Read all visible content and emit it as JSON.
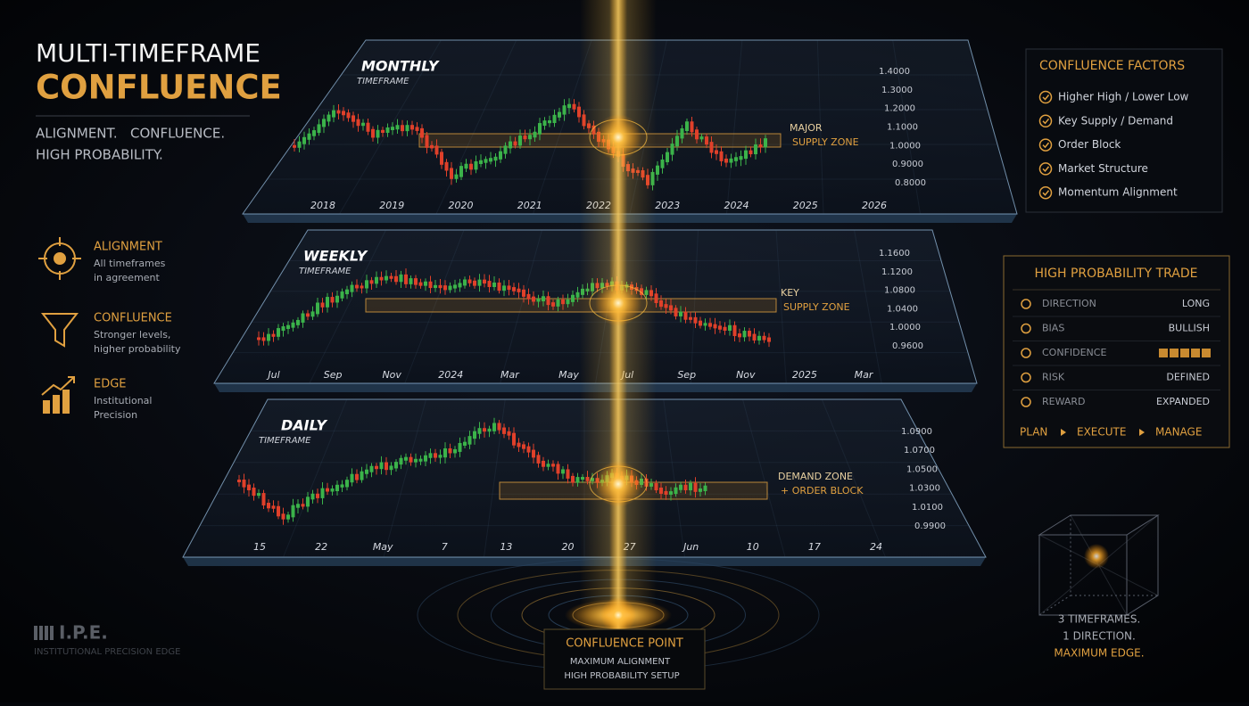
{
  "header": {
    "title_line1": "MULTI-TIMEFRAME",
    "title_line2": "CONFLUENCE",
    "tagline": [
      "ALIGNMENT.   CONFLUENCE.",
      "HIGH PROBABILITY."
    ]
  },
  "features": [
    {
      "title": "ALIGNMENT",
      "desc": [
        "All timeframes",
        "in agreement"
      ]
    },
    {
      "title": "CONFLUENCE",
      "desc": [
        "Stronger levels,",
        "higher probability"
      ]
    },
    {
      "title": "EDGE",
      "desc": [
        "Institutional",
        "Precision"
      ]
    }
  ],
  "panels": [
    {
      "title": "MONTHLY",
      "subtitle": "TIMEFRAME",
      "x_labels": [
        "2018",
        "2019",
        "2020",
        "2021",
        "2022",
        "2023",
        "2024",
        "2025",
        "2026"
      ],
      "y_labels": [
        "1.4000",
        "1.3000",
        "1.2000",
        "1.1000",
        "1.0000",
        "0.9000",
        "0.8000"
      ],
      "zone": [
        "MAJOR",
        "SUPPLY ZONE"
      ]
    },
    {
      "title": "WEEKLY",
      "subtitle": "TIMEFRAME",
      "x_labels": [
        "Jul",
        "Sep",
        "Nov",
        "2024",
        "Mar",
        "May",
        "Jul",
        "Sep",
        "Nov",
        "2025",
        "Mar"
      ],
      "y_labels": [
        "1.1600",
        "1.1200",
        "1.0800",
        "1.0400",
        "1.0000",
        "0.9600"
      ],
      "zone": [
        "KEY",
        "SUPPLY ZONE"
      ]
    },
    {
      "title": "DAILY",
      "subtitle": "TIMEFRAME",
      "x_labels": [
        "15",
        "22",
        "May",
        "7",
        "13",
        "20",
        "27",
        "Jun",
        "10",
        "17",
        "24"
      ],
      "y_labels": [
        "1.0900",
        "1.0700",
        "1.0500",
        "1.0300",
        "1.0100",
        "0.9900"
      ],
      "zone": [
        "DEMAND ZONE",
        "+ ORDER BLOCK"
      ]
    }
  ],
  "confluence_factors": {
    "title": "CONFLUENCE FACTORS",
    "items": [
      "Higher High / Lower Low",
      "Key Supply / Demand",
      "Order Block",
      "Market Structure",
      "Momentum Alignment"
    ]
  },
  "trade": {
    "title": "HIGH PROBABILITY TRADE",
    "rows": [
      {
        "label": "DIRECTION",
        "value": "LONG"
      },
      {
        "label": "BIAS",
        "value": "BULLISH"
      },
      {
        "label": "CONFIDENCE"
      },
      {
        "label": "RISK",
        "value": "DEFINED"
      },
      {
        "label": "REWARD",
        "value": "EXPANDED"
      }
    ],
    "steps": [
      "PLAN",
      "EXECUTE",
      "MANAGE"
    ]
  },
  "confluence_point": {
    "title": "CONFLUENCE POINT",
    "lines": [
      "MAXIMUM ALIGNMENT",
      "HIGH PROBABILITY SETUP"
    ]
  },
  "edge_caption": [
    "3 TIMEFRAMES.",
    "1 DIRECTION.",
    "MAXIMUM EDGE."
  ],
  "logo": {
    "mark": "I.P.E.",
    "subtitle": "INSTITUTIONAL PRECISION EDGE"
  }
}
